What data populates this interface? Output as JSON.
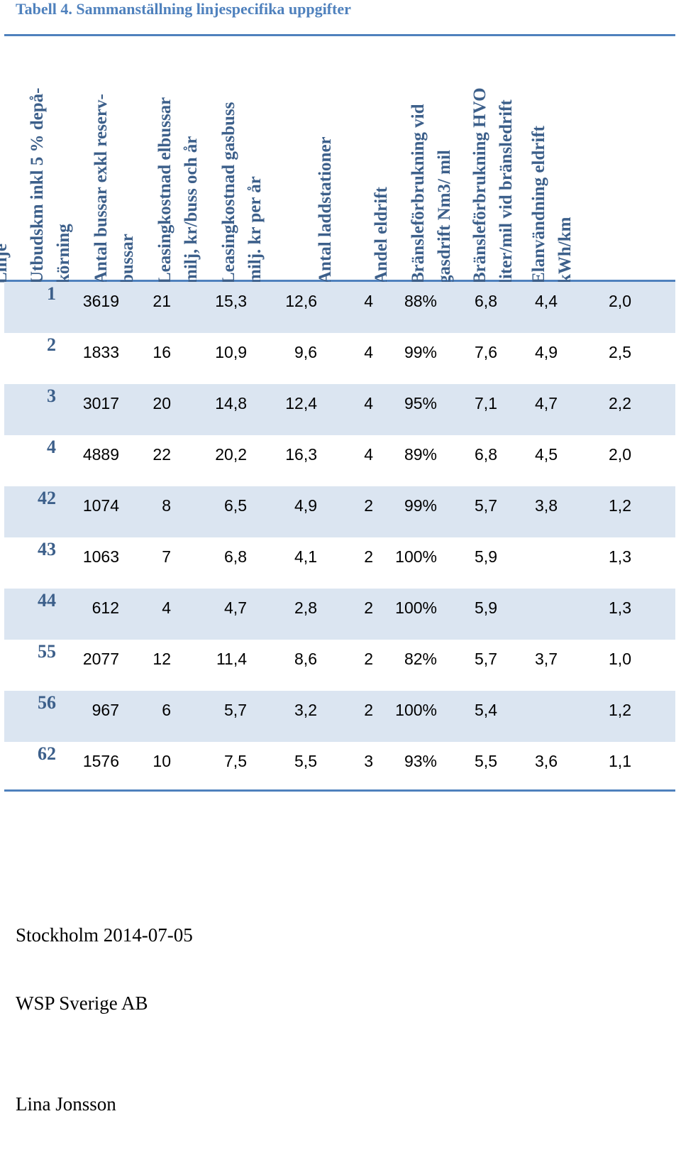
{
  "caption": "Tabell 4. Sammanställning linjespecifika uppgifter",
  "headers": {
    "linje": "Linje",
    "c0": "Utbudskm inkl 5 % depå-\nkörning",
    "c1": "Antal bussar exkl reserv-\nbussar",
    "c2": "Leasingkostnad elbussar\nmilj, kr/buss och år",
    "c3": "Leasingkostnad  gasbuss\nmilj. kr per år",
    "c4": "Antal laddstationer",
    "c5": "Andel eldrift",
    "c6": "Bränsleförbrukning vid\ngasdrift Nm3/ mil",
    "c7": "Bränsleförbrukning HVO\nliter/mil vid bränsledrift",
    "c8": "Elanvändning eldrift\nkWh/km"
  },
  "rows": [
    {
      "linje": "1",
      "c0": "3619",
      "c1": "21",
      "c2": "15,3",
      "c3": "12,6",
      "c4": "4",
      "c5": "88%",
      "c6": "6,8",
      "c7": "4,4",
      "c8": "2,0"
    },
    {
      "linje": "2",
      "c0": "1833",
      "c1": "16",
      "c2": "10,9",
      "c3": "9,6",
      "c4": "4",
      "c5": "99%",
      "c6": "7,6",
      "c7": "4,9",
      "c8": "2,5"
    },
    {
      "linje": "3",
      "c0": "3017",
      "c1": "20",
      "c2": "14,8",
      "c3": "12,4",
      "c4": "4",
      "c5": "95%",
      "c6": "7,1",
      "c7": "4,7",
      "c8": "2,2"
    },
    {
      "linje": "4",
      "c0": "4889",
      "c1": "22",
      "c2": "20,2",
      "c3": "16,3",
      "c4": "4",
      "c5": "89%",
      "c6": "6,8",
      "c7": "4,5",
      "c8": "2,0"
    },
    {
      "linje": "42",
      "c0": "1074",
      "c1": "8",
      "c2": "6,5",
      "c3": "4,9",
      "c4": "2",
      "c5": "99%",
      "c6": "5,7",
      "c7": "3,8",
      "c8": "1,2"
    },
    {
      "linje": "43",
      "c0": "1063",
      "c1": "7",
      "c2": "6,8",
      "c3": "4,1",
      "c4": "2",
      "c5": "100%",
      "c6": "5,9",
      "c7": "",
      "c8": "1,3"
    },
    {
      "linje": "44",
      "c0": "612",
      "c1": "4",
      "c2": "4,7",
      "c3": "2,8",
      "c4": "2",
      "c5": "100%",
      "c6": "5,9",
      "c7": "",
      "c8": "1,3"
    },
    {
      "linje": "55",
      "c0": "2077",
      "c1": "12",
      "c2": "11,4",
      "c3": "8,6",
      "c4": "2",
      "c5": "82%",
      "c6": "5,7",
      "c7": "3,7",
      "c8": "1,0"
    },
    {
      "linje": "56",
      "c0": "967",
      "c1": "6",
      "c2": "5,7",
      "c3": "3,2",
      "c4": "2",
      "c5": "100%",
      "c6": "5,4",
      "c7": "",
      "c8": "1,2"
    },
    {
      "linje": "62",
      "c0": "1576",
      "c1": "10",
      "c2": "7,5",
      "c3": "5,5",
      "c4": "3",
      "c5": "93%",
      "c6": "5,5",
      "c7": "3,6",
      "c8": "1,1"
    }
  ],
  "footer": {
    "place_date": "Stockholm 2014-07-05",
    "company": "WSP Sverige AB",
    "author": "Lina Jonsson"
  },
  "colors": {
    "accent": "#4f81bd",
    "header_text": "#3c5f8a",
    "row_shade": "#dbe5f1"
  }
}
